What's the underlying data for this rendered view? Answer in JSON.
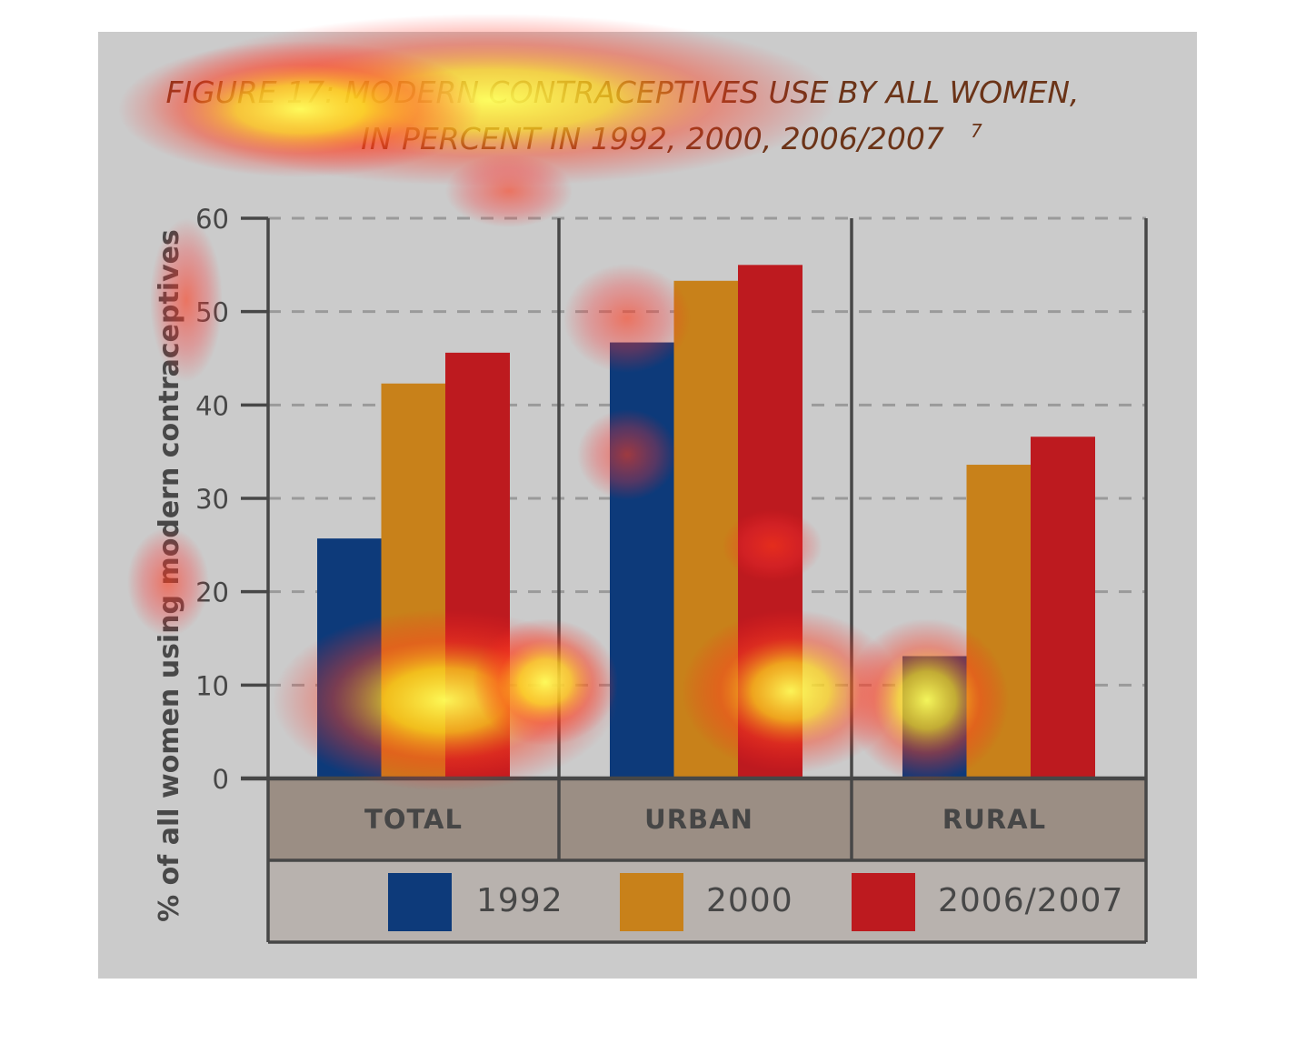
{
  "colors": {
    "background": "#cbcbcb",
    "category_band": "#9b8e84",
    "legend_band": "#b8b2ae",
    "axis": "#474747",
    "grid": "#9a9a9a",
    "title": "#6b3418"
  },
  "chart_data": {
    "type": "bar",
    "title_line1": "FIGURE 17: MODERN CONTRACEPTIVES USE BY ALL WOMEN,",
    "title_line2": "IN PERCENT IN 1992, 2000, 2006/2007",
    "title_superscript": "7",
    "ylabel": "% of all women using modern contraceptives",
    "xlabel": "",
    "ylim": [
      0,
      60
    ],
    "yticks": [
      "0",
      "10",
      "20",
      "30",
      "40",
      "50",
      "60"
    ],
    "grid": true,
    "legend_position": "bottom",
    "categories": [
      "TOTAL",
      "URBAN",
      "RURAL"
    ],
    "series": [
      {
        "name": "1992",
        "color": "#0d3a7a",
        "values": [
          25.7,
          46.7,
          13.1
        ]
      },
      {
        "name": "2000",
        "color": "#c8811a",
        "values": [
          42.3,
          53.3,
          33.6
        ]
      },
      {
        "name": "2006/2007",
        "color": "#bd1a1f",
        "values": [
          45.6,
          55.0,
          36.6
        ]
      }
    ]
  }
}
